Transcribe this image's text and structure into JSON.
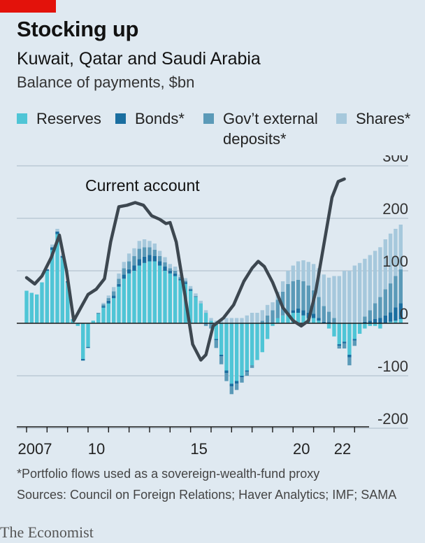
{
  "header": {
    "title": "Stocking up",
    "subtitle": "Kuwait, Qatar and Saudi Arabia",
    "unit": "Balance of payments, $bn"
  },
  "legend": [
    {
      "label": "Reserves",
      "color": "#4fc5d6"
    },
    {
      "label": "Bonds*",
      "color": "#1a6ea0"
    },
    {
      "label": "Gov't external deposits*",
      "label_line1": "Gov’t external",
      "label_line2": "deposits*",
      "color": "#5b9ab8"
    },
    {
      "label": "Shares*",
      "color": "#a6c8dc"
    }
  ],
  "footer": {
    "note": "*Portfolio flows used as a sovereign-wealth-fund proxy",
    "sources": "Sources: Council on Foreign Relations; Haver Analytics; IMF; SAMA",
    "brand": "The Economist"
  },
  "chart_data": {
    "type": "bar",
    "title": "Stocking up",
    "subtitle": "Kuwait, Qatar and Saudi Arabia",
    "ylabel": "Balance of payments, $bn",
    "ylim": [
      -200,
      300
    ],
    "yticks": [
      300,
      200,
      100,
      0,
      -100,
      -200
    ],
    "y_tick_labels": [
      "300",
      "200",
      "100",
      "0",
      "-100",
      "-200"
    ],
    "x_tick_labels": [
      "2007",
      "10",
      "15",
      "20",
      "22"
    ],
    "x_ticks_years": [
      2007,
      2010,
      2015,
      2020,
      2022
    ],
    "grid": true,
    "stacked": true,
    "period": "quarterly, 2007 Q1 to 2022 Q4",
    "series": [
      {
        "name": "Reserves",
        "color": "#4fc5d6",
        "values": [
          62,
          58,
          55,
          78,
          100,
          140,
          170,
          125,
          78,
          8,
          -5,
          -68,
          -45,
          5,
          18,
          30,
          38,
          48,
          70,
          85,
          95,
          100,
          110,
          115,
          118,
          118,
          110,
          100,
          95,
          90,
          82,
          75,
          62,
          50,
          38,
          20,
          5,
          -30,
          -60,
          -90,
          -115,
          -110,
          -100,
          -90,
          -80,
          -70,
          -55,
          -30,
          -5,
          10,
          15,
          18,
          20,
          20,
          15,
          10,
          10,
          5,
          0,
          -10,
          -25,
          -40,
          -35,
          -60,
          -30,
          -20,
          -10,
          -5,
          -5,
          -10,
          0,
          3,
          5,
          8
        ]
      },
      {
        "name": "Bonds*",
        "color": "#1a6ea0",
        "values": [
          0,
          0,
          0,
          0,
          3,
          5,
          5,
          3,
          2,
          0,
          0,
          -3,
          -2,
          0,
          0,
          3,
          5,
          5,
          5,
          8,
          8,
          10,
          12,
          12,
          12,
          10,
          8,
          8,
          5,
          5,
          3,
          3,
          2,
          0,
          0,
          0,
          0,
          -2,
          -3,
          -5,
          -5,
          -5,
          -3,
          -2,
          0,
          0,
          0,
          0,
          0,
          0,
          0,
          2,
          5,
          8,
          10,
          10,
          8,
          5,
          3,
          2,
          0,
          -3,
          -3,
          -5,
          -3,
          0,
          3,
          5,
          8,
          10,
          15,
          18,
          25,
          30
        ]
      },
      {
        "name": "Gov't external deposits*",
        "color": "#5b9ab8",
        "values": [
          0,
          0,
          0,
          0,
          0,
          0,
          0,
          0,
          0,
          0,
          0,
          0,
          0,
          0,
          2,
          3,
          5,
          8,
          10,
          12,
          15,
          18,
          20,
          18,
          15,
          12,
          10,
          8,
          5,
          5,
          3,
          3,
          2,
          2,
          0,
          -5,
          -10,
          -15,
          -15,
          -15,
          -15,
          -12,
          -10,
          -8,
          -5,
          0,
          5,
          15,
          25,
          35,
          45,
          55,
          55,
          55,
          55,
          52,
          45,
          40,
          30,
          20,
          10,
          -5,
          -10,
          -15,
          -10,
          0,
          10,
          20,
          30,
          40,
          50,
          55,
          60,
          65
        ]
      },
      {
        "name": "Shares*",
        "color": "#a6c8dc",
        "values": [
          0,
          0,
          0,
          0,
          0,
          5,
          5,
          3,
          0,
          0,
          0,
          0,
          0,
          0,
          0,
          3,
          5,
          8,
          10,
          12,
          15,
          15,
          15,
          15,
          12,
          12,
          10,
          10,
          8,
          8,
          5,
          5,
          5,
          5,
          5,
          5,
          5,
          5,
          5,
          10,
          10,
          10,
          10,
          15,
          20,
          20,
          20,
          20,
          15,
          15,
          20,
          25,
          30,
          35,
          40,
          45,
          50,
          55,
          60,
          65,
          80,
          90,
          100,
          100,
          110,
          115,
          110,
          105,
          100,
          95,
          95,
          95,
          90,
          85
        ]
      }
    ],
    "line_series": {
      "name": "Current account",
      "x": [
        2007.0,
        2007.4,
        2007.75,
        2008.2,
        2008.6,
        2008.95,
        2009.3,
        2009.65,
        2010.0,
        2010.4,
        2010.8,
        2011.1,
        2011.5,
        2011.9,
        2012.3,
        2012.7,
        2013.1,
        2013.5,
        2013.8,
        2014.0,
        2014.3,
        2014.7,
        2015.1,
        2015.5,
        2015.75,
        2016.1,
        2016.6,
        2017.1,
        2017.6,
        2018.0,
        2018.3,
        2018.6,
        2019.0,
        2019.5,
        2020.0,
        2020.4,
        2020.75,
        2021.1,
        2021.5,
        2021.9,
        2022.2,
        2022.5
      ],
      "y": [
        87,
        75,
        90,
        125,
        168,
        100,
        5,
        30,
        55,
        65,
        85,
        155,
        222,
        225,
        230,
        225,
        205,
        198,
        190,
        192,
        155,
        60,
        -40,
        -70,
        -60,
        -5,
        10,
        35,
        80,
        105,
        118,
        108,
        78,
        30,
        5,
        -5,
        5,
        60,
        150,
        240,
        270,
        275
      ],
      "annotation": "Current account"
    }
  }
}
